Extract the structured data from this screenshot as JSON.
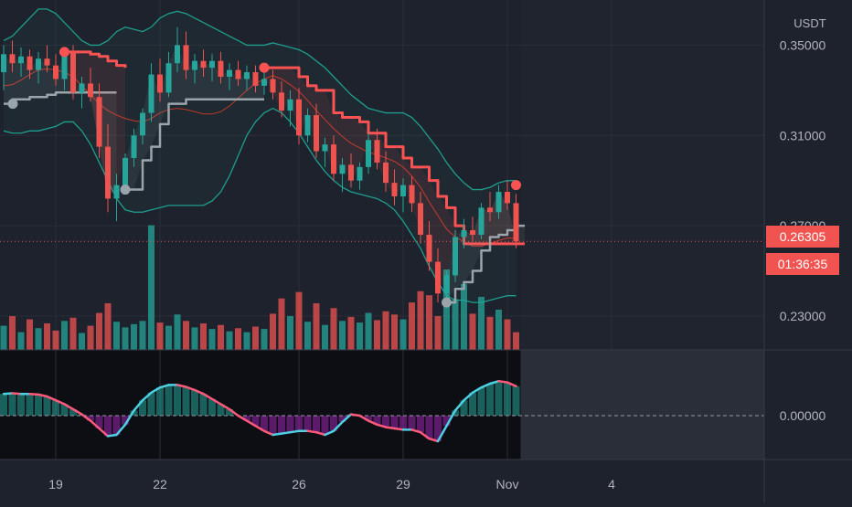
{
  "chart_data": {
    "type": "candlestick",
    "quote_currency": "USDT",
    "price_axis": {
      "range": [
        0.215,
        0.37
      ],
      "ticks": [
        "0.35000",
        "0.31000",
        "0.27000",
        "0.23000"
      ]
    },
    "oscillator_axis": {
      "ticks": [
        "0.00000"
      ]
    },
    "time_axis": {
      "labels": [
        {
          "label": "19",
          "bar": 6
        },
        {
          "label": "22",
          "bar": 18
        },
        {
          "label": "26",
          "bar": 34
        },
        {
          "label": "29",
          "bar": 46
        },
        {
          "label": "Nov",
          "bar": 58
        },
        {
          "label": "4",
          "bar": 70
        }
      ]
    },
    "last_price": "0.26305",
    "countdown": "01:36:35",
    "candles": [
      [
        0.338,
        0.35,
        0.33,
        0.346
      ],
      [
        0.346,
        0.352,
        0.338,
        0.342
      ],
      [
        0.342,
        0.349,
        0.336,
        0.345
      ],
      [
        0.345,
        0.348,
        0.335,
        0.339
      ],
      [
        0.339,
        0.347,
        0.333,
        0.344
      ],
      [
        0.344,
        0.35,
        0.338,
        0.341
      ],
      [
        0.341,
        0.346,
        0.332,
        0.335
      ],
      [
        0.335,
        0.349,
        0.33,
        0.347
      ],
      [
        0.347,
        0.35,
        0.326,
        0.329
      ],
      [
        0.329,
        0.336,
        0.322,
        0.333
      ],
      [
        0.333,
        0.34,
        0.325,
        0.327
      ],
      [
        0.327,
        0.333,
        0.3,
        0.305
      ],
      [
        0.305,
        0.315,
        0.276,
        0.282
      ],
      [
        0.282,
        0.293,
        0.272,
        0.288
      ],
      [
        0.288,
        0.302,
        0.285,
        0.3
      ],
      [
        0.3,
        0.313,
        0.296,
        0.31
      ],
      [
        0.31,
        0.322,
        0.306,
        0.32
      ],
      [
        0.32,
        0.342,
        0.316,
        0.337
      ],
      [
        0.337,
        0.344,
        0.325,
        0.329
      ],
      [
        0.329,
        0.347,
        0.327,
        0.342
      ],
      [
        0.342,
        0.358,
        0.338,
        0.35
      ],
      [
        0.35,
        0.356,
        0.335,
        0.339
      ],
      [
        0.339,
        0.346,
        0.333,
        0.343
      ],
      [
        0.343,
        0.348,
        0.336,
        0.34
      ],
      [
        0.34,
        0.346,
        0.334,
        0.343
      ],
      [
        0.343,
        0.347,
        0.333,
        0.336
      ],
      [
        0.336,
        0.342,
        0.33,
        0.339
      ],
      [
        0.339,
        0.343,
        0.332,
        0.335
      ],
      [
        0.335,
        0.341,
        0.33,
        0.338
      ],
      [
        0.338,
        0.341,
        0.329,
        0.332
      ],
      [
        0.332,
        0.338,
        0.328,
        0.335
      ],
      [
        0.335,
        0.339,
        0.326,
        0.329
      ],
      [
        0.329,
        0.334,
        0.318,
        0.321
      ],
      [
        0.321,
        0.33,
        0.314,
        0.326
      ],
      [
        0.326,
        0.331,
        0.306,
        0.31
      ],
      [
        0.31,
        0.322,
        0.307,
        0.319
      ],
      [
        0.319,
        0.324,
        0.3,
        0.303
      ],
      [
        0.303,
        0.309,
        0.296,
        0.306
      ],
      [
        0.306,
        0.31,
        0.29,
        0.293
      ],
      [
        0.293,
        0.3,
        0.285,
        0.297
      ],
      [
        0.297,
        0.302,
        0.287,
        0.29
      ],
      [
        0.29,
        0.298,
        0.286,
        0.296
      ],
      [
        0.296,
        0.311,
        0.293,
        0.308
      ],
      [
        0.308,
        0.313,
        0.295,
        0.298
      ],
      [
        0.298,
        0.303,
        0.285,
        0.289
      ],
      [
        0.289,
        0.295,
        0.279,
        0.283
      ],
      [
        0.283,
        0.291,
        0.276,
        0.288
      ],
      [
        0.288,
        0.292,
        0.276,
        0.28
      ],
      [
        0.28,
        0.285,
        0.262,
        0.266
      ],
      [
        0.266,
        0.272,
        0.25,
        0.254
      ],
      [
        0.254,
        0.26,
        0.236,
        0.24
      ],
      [
        0.24,
        0.25,
        0.234,
        0.248
      ],
      [
        0.248,
        0.268,
        0.245,
        0.265
      ],
      [
        0.265,
        0.273,
        0.26,
        0.268
      ],
      [
        0.268,
        0.274,
        0.263,
        0.266
      ],
      [
        0.266,
        0.28,
        0.264,
        0.278
      ],
      [
        0.278,
        0.285,
        0.272,
        0.276
      ],
      [
        0.276,
        0.288,
        0.273,
        0.285
      ],
      [
        0.285,
        0.29,
        0.277,
        0.28
      ],
      [
        0.28,
        0.284,
        0.26,
        0.263
      ]
    ],
    "volumes": [
      0.3,
      0.42,
      0.22,
      0.38,
      0.27,
      0.33,
      0.24,
      0.36,
      0.4,
      0.21,
      0.3,
      0.46,
      0.58,
      0.35,
      0.28,
      0.32,
      0.36,
      1.55,
      0.34,
      0.3,
      0.44,
      0.36,
      0.28,
      0.33,
      0.26,
      0.31,
      0.23,
      0.27,
      0.22,
      0.29,
      0.26,
      0.45,
      0.64,
      0.42,
      0.72,
      0.35,
      0.58,
      0.31,
      0.52,
      0.36,
      0.41,
      0.34,
      0.46,
      0.37,
      0.48,
      0.44,
      0.38,
      0.59,
      0.73,
      0.68,
      0.42,
      1.0,
      0.63,
      0.82,
      0.45,
      0.66,
      0.41,
      0.5,
      0.38,
      0.22
    ],
    "bollinger": {
      "upper": [
        0.352,
        0.354,
        0.358,
        0.362,
        0.366,
        0.366,
        0.364,
        0.36,
        0.356,
        0.352,
        0.35,
        0.35,
        0.352,
        0.356,
        0.358,
        0.357,
        0.356,
        0.358,
        0.362,
        0.364,
        0.365,
        0.364,
        0.362,
        0.36,
        0.358,
        0.356,
        0.354,
        0.352,
        0.35,
        0.35,
        0.35,
        0.351,
        0.35,
        0.349,
        0.348,
        0.346,
        0.343,
        0.34,
        0.336,
        0.332,
        0.328,
        0.325,
        0.322,
        0.321,
        0.32,
        0.32,
        0.32,
        0.318,
        0.314,
        0.309,
        0.304,
        0.298,
        0.293,
        0.289,
        0.286,
        0.286,
        0.287,
        0.289,
        0.29,
        0.29
      ],
      "lower": [
        0.312,
        0.311,
        0.311,
        0.312,
        0.312,
        0.313,
        0.314,
        0.316,
        0.316,
        0.312,
        0.306,
        0.298,
        0.29,
        0.282,
        0.277,
        0.276,
        0.276,
        0.277,
        0.278,
        0.279,
        0.279,
        0.279,
        0.279,
        0.279,
        0.281,
        0.285,
        0.292,
        0.301,
        0.31,
        0.316,
        0.32,
        0.322,
        0.32,
        0.316,
        0.311,
        0.305,
        0.299,
        0.294,
        0.29,
        0.287,
        0.285,
        0.284,
        0.283,
        0.282,
        0.28,
        0.277,
        0.272,
        0.266,
        0.26,
        0.252,
        0.245,
        0.239,
        0.237,
        0.237,
        0.236,
        0.236,
        0.237,
        0.238,
        0.239,
        0.239
      ]
    },
    "supertrend": [
      {
        "bars": [
          0,
          13
        ],
        "values": [
          0.324,
          0.326,
          0.326,
          0.327,
          0.327,
          0.328,
          0.329,
          0.329,
          0.329,
          0.329,
          0.329,
          0.329,
          0.329,
          0.329
        ],
        "trend": "up"
      },
      {
        "bars": [
          7,
          14
        ],
        "values": [
          0.347,
          0.347,
          0.347,
          0.346,
          0.345,
          0.343,
          0.341,
          0.34
        ],
        "trend": "down"
      },
      {
        "bars": [
          14,
          20
        ],
        "values": [
          0.286,
          0.286,
          0.299,
          0.305,
          0.315,
          0.324,
          0.324
        ],
        "trend": "up"
      },
      {
        "bars": [
          20,
          30
        ],
        "values": [
          0.324,
          0.326,
          0.326,
          0.326,
          0.326,
          0.326,
          0.326,
          0.326,
          0.326,
          0.326,
          0.326
        ],
        "trend": "up"
      },
      {
        "bars": [
          30,
          60
        ],
        "values": [
          0.34,
          0.34,
          0.34,
          0.34,
          0.336,
          0.332,
          0.33,
          0.33,
          0.32,
          0.318,
          0.318,
          0.316,
          0.311,
          0.311,
          0.305,
          0.305,
          0.3,
          0.296,
          0.296,
          0.29,
          0.283,
          0.278,
          0.27,
          0.262,
          0.262,
          0.262,
          0.262,
          0.262,
          0.262,
          0.262,
          0.262
        ],
        "trend": "down"
      },
      {
        "bars": [
          51,
          60
        ],
        "values": [
          0.236,
          0.242,
          0.245,
          0.25,
          0.259,
          0.265,
          0.266,
          0.268,
          0.27,
          0.27
        ],
        "trend": "up"
      }
    ],
    "signals": [
      {
        "bar": 0,
        "price": 0.324,
        "type": "buy"
      },
      {
        "bar": 7,
        "price": 0.347,
        "type": "sell"
      },
      {
        "bar": 14,
        "price": 0.286,
        "type": "buy"
      },
      {
        "bar": 30,
        "price": 0.34,
        "type": "sell"
      },
      {
        "bar": 51,
        "price": 0.236,
        "type": "buy"
      },
      {
        "bar": 59,
        "price": 0.288,
        "type": "sell"
      }
    ],
    "oscillator": [
      0.034,
      0.035,
      0.034,
      0.034,
      0.033,
      0.03,
      0.024,
      0.018,
      0.01,
      0.002,
      -0.008,
      -0.02,
      -0.032,
      -0.03,
      -0.014,
      0.008,
      0.024,
      0.036,
      0.044,
      0.048,
      0.048,
      0.045,
      0.04,
      0.034,
      0.026,
      0.018,
      0.01,
      0.0,
      -0.008,
      -0.016,
      -0.024,
      -0.03,
      -0.028,
      -0.026,
      -0.024,
      -0.024,
      -0.026,
      -0.03,
      -0.024,
      -0.01,
      0.002,
      0.0,
      -0.008,
      -0.014,
      -0.018,
      -0.02,
      -0.022,
      -0.022,
      -0.026,
      -0.036,
      -0.04,
      -0.016,
      0.008,
      0.024,
      0.036,
      0.044,
      0.05,
      0.054,
      0.052,
      0.046
    ],
    "colors": {
      "up": "#26a69a",
      "down": "#ef5350",
      "supertrend_down": "#ff5252",
      "supertrend_up": "#9aa5ab",
      "bollinger": "#1e9e8e",
      "histogram_positive": "#26a69a",
      "histogram_negative": "#9c27b0",
      "price_badge": "#f05350"
    }
  }
}
